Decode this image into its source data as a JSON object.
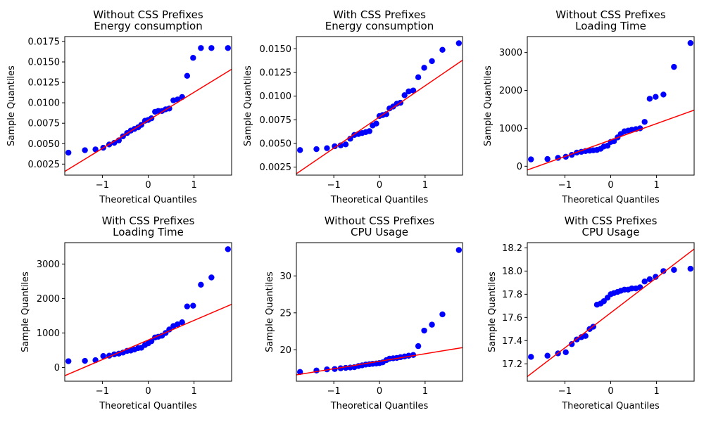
{
  "chart_data": [
    {
      "type": "scatter",
      "title": [
        "Without CSS Prefixes",
        "Energy consumption"
      ],
      "xlabel": "Theoretical Quantiles",
      "ylabel": "Sample Quantiles",
      "xlim": [
        -1.82,
        1.82
      ],
      "ylim": [
        0.00115,
        0.0181
      ],
      "xticks": [
        {
          "v": -1,
          "label": "−1"
        },
        {
          "v": 0,
          "label": "0"
        },
        {
          "v": 1,
          "label": "1"
        }
      ],
      "yticks": [
        {
          "v": 0.0025,
          "label": "0.0025"
        },
        {
          "v": 0.005,
          "label": "0.0050"
        },
        {
          "v": 0.0075,
          "label": "0.0075"
        },
        {
          "v": 0.01,
          "label": "0.0100"
        },
        {
          "v": 0.0125,
          "label": "0.0125"
        },
        {
          "v": 0.015,
          "label": "0.0150"
        },
        {
          "v": 0.0175,
          "label": "0.0175"
        }
      ],
      "x": [
        -1.74,
        -1.38,
        -1.15,
        -0.98,
        -0.85,
        -0.74,
        -0.64,
        -0.55,
        -0.46,
        -0.38,
        -0.3,
        -0.22,
        -0.15,
        -0.07,
        0.0,
        0.07,
        0.15,
        0.22,
        0.3,
        0.38,
        0.46,
        0.55,
        0.64,
        0.74,
        0.85,
        0.98,
        1.15,
        1.38,
        1.74
      ],
      "y": [
        0.0039,
        0.0042,
        0.0043,
        0.0045,
        0.0049,
        0.0051,
        0.0054,
        0.0059,
        0.0063,
        0.0066,
        0.0068,
        0.007,
        0.0073,
        0.0078,
        0.0079,
        0.0081,
        0.0089,
        0.009,
        0.009,
        0.0092,
        0.0093,
        0.0103,
        0.0104,
        0.0107,
        0.0133,
        0.0155,
        0.0167,
        0.0167,
        0.0167
      ],
      "line": [
        [
          -1.82,
          0.0016
        ],
        [
          1.82,
          0.0141
        ]
      ],
      "marker_color": "#0000ff",
      "line_color": "#ff0000"
    },
    {
      "type": "scatter",
      "title": [
        "With CSS Prefixes",
        "Energy consumption"
      ],
      "xlabel": "Theoretical Quantiles",
      "ylabel": "Sample Quantiles",
      "xlim": [
        -1.82,
        1.82
      ],
      "ylim": [
        0.00165,
        0.0163
      ],
      "xticks": [
        {
          "v": -1,
          "label": "−1"
        },
        {
          "v": 0,
          "label": "0"
        },
        {
          "v": 1,
          "label": "1"
        }
      ],
      "yticks": [
        {
          "v": 0.0025,
          "label": "0.0025"
        },
        {
          "v": 0.005,
          "label": "0.0050"
        },
        {
          "v": 0.0075,
          "label": "0.0075"
        },
        {
          "v": 0.01,
          "label": "0.0100"
        },
        {
          "v": 0.0125,
          "label": "0.0125"
        },
        {
          "v": 0.015,
          "label": "0.0150"
        }
      ],
      "x": [
        -1.74,
        -1.38,
        -1.15,
        -0.98,
        -0.85,
        -0.74,
        -0.64,
        -0.55,
        -0.46,
        -0.38,
        -0.3,
        -0.22,
        -0.15,
        -0.07,
        0.0,
        0.07,
        0.15,
        0.22,
        0.3,
        0.38,
        0.46,
        0.55,
        0.64,
        0.74,
        0.85,
        0.98,
        1.15,
        1.38,
        1.74
      ],
      "y": [
        0.0043,
        0.0044,
        0.0045,
        0.0047,
        0.0048,
        0.0049,
        0.0055,
        0.0059,
        0.006,
        0.0061,
        0.0062,
        0.0063,
        0.0069,
        0.0071,
        0.0079,
        0.008,
        0.0081,
        0.0087,
        0.0089,
        0.0092,
        0.0093,
        0.0101,
        0.0105,
        0.0106,
        0.012,
        0.013,
        0.0137,
        0.0149,
        0.0156
      ],
      "line": [
        [
          -1.82,
          0.0018
        ],
        [
          1.82,
          0.0138
        ]
      ],
      "marker_color": "#0000ff",
      "line_color": "#ff0000"
    },
    {
      "type": "scatter",
      "title": [
        "Without CSS Prefixes",
        "Loading Time"
      ],
      "xlabel": "Theoretical Quantiles",
      "ylabel": "Sample Quantiles",
      "xlim": [
        -1.82,
        1.82
      ],
      "ylim": [
        -235,
        3420
      ],
      "xticks": [
        {
          "v": -1,
          "label": "−1"
        },
        {
          "v": 0,
          "label": "0"
        },
        {
          "v": 1,
          "label": "1"
        }
      ],
      "yticks": [
        {
          "v": 0,
          "label": "0"
        },
        {
          "v": 1000,
          "label": "1000"
        },
        {
          "v": 2000,
          "label": "2000"
        },
        {
          "v": 3000,
          "label": "3000"
        }
      ],
      "x": [
        -1.74,
        -1.38,
        -1.15,
        -0.98,
        -0.85,
        -0.74,
        -0.64,
        -0.55,
        -0.46,
        -0.38,
        -0.3,
        -0.22,
        -0.15,
        -0.07,
        0.0,
        0.07,
        0.15,
        0.22,
        0.3,
        0.38,
        0.46,
        0.55,
        0.64,
        0.74,
        0.85,
        0.98,
        1.15,
        1.38,
        1.74
      ],
      "y": [
        180,
        190,
        220,
        250,
        300,
        360,
        380,
        400,
        410,
        420,
        430,
        460,
        520,
        540,
        640,
        660,
        760,
        850,
        920,
        940,
        960,
        980,
        1000,
        1170,
        1780,
        1830,
        1890,
        2620,
        3250
      ],
      "line": [
        [
          -1.82,
          -100
        ],
        [
          1.82,
          1480
        ]
      ],
      "marker_color": "#0000ff",
      "line_color": "#ff0000"
    },
    {
      "type": "scatter",
      "title": [
        "With CSS Prefixes",
        "Loading Time"
      ],
      "xlabel": "Theoretical Quantiles",
      "ylabel": "Sample Quantiles",
      "xlim": [
        -1.82,
        1.82
      ],
      "ylim": [
        -400,
        3620
      ],
      "xticks": [
        {
          "v": -1,
          "label": "−1"
        },
        {
          "v": 0,
          "label": "0"
        },
        {
          "v": 1,
          "label": "1"
        }
      ],
      "yticks": [
        {
          "v": 0,
          "label": "0"
        },
        {
          "v": 1000,
          "label": "1000"
        },
        {
          "v": 2000,
          "label": "2000"
        },
        {
          "v": 3000,
          "label": "3000"
        }
      ],
      "x": [
        -1.74,
        -1.38,
        -1.15,
        -0.98,
        -0.85,
        -0.74,
        -0.64,
        -0.55,
        -0.46,
        -0.38,
        -0.3,
        -0.22,
        -0.15,
        -0.07,
        0.0,
        0.07,
        0.15,
        0.22,
        0.3,
        0.38,
        0.46,
        0.55,
        0.64,
        0.74,
        0.85,
        0.98,
        1.15,
        1.38,
        1.74
      ],
      "y": [
        180,
        190,
        210,
        330,
        340,
        380,
        400,
        430,
        480,
        490,
        520,
        560,
        570,
        650,
        700,
        760,
        870,
        890,
        920,
        1000,
        1100,
        1200,
        1250,
        1310,
        1770,
        1790,
        2400,
        2610,
        3430
      ],
      "line": [
        [
          -1.82,
          -240
        ],
        [
          1.82,
          1830
        ]
      ],
      "marker_color": "#0000ff",
      "line_color": "#ff0000"
    },
    {
      "type": "scatter",
      "title": [
        "Without CSS Prefixes",
        "CPU Usage"
      ],
      "xlabel": "Theoretical Quantiles",
      "ylabel": "Sample Quantiles",
      "xlim": [
        -1.82,
        1.82
      ],
      "ylim": [
        15.75,
        34.5
      ],
      "xticks": [
        {
          "v": -1,
          "label": "−1"
        },
        {
          "v": 0,
          "label": "0"
        },
        {
          "v": 1,
          "label": "1"
        }
      ],
      "yticks": [
        {
          "v": 20,
          "label": "20"
        },
        {
          "v": 25,
          "label": "25"
        },
        {
          "v": 30,
          "label": "30"
        }
      ],
      "x": [
        -1.74,
        -1.38,
        -1.15,
        -0.98,
        -0.85,
        -0.74,
        -0.64,
        -0.55,
        -0.46,
        -0.38,
        -0.3,
        -0.22,
        -0.15,
        -0.07,
        0.0,
        0.07,
        0.15,
        0.22,
        0.3,
        0.38,
        0.46,
        0.55,
        0.64,
        0.74,
        0.85,
        0.98,
        1.15,
        1.38,
        1.74
      ],
      "y": [
        17.0,
        17.2,
        17.35,
        17.4,
        17.5,
        17.55,
        17.6,
        17.65,
        17.8,
        17.9,
        18.0,
        18.05,
        18.1,
        18.15,
        18.2,
        18.3,
        18.6,
        18.8,
        18.85,
        18.9,
        19.0,
        19.1,
        19.2,
        19.3,
        20.5,
        22.6,
        23.4,
        24.8,
        33.5
      ],
      "line": [
        [
          -1.82,
          16.6
        ],
        [
          1.82,
          20.3
        ]
      ],
      "marker_color": "#0000ff",
      "line_color": "#ff0000"
    },
    {
      "type": "scatter",
      "title": [
        "With CSS Prefixes",
        "CPU Usage"
      ],
      "xlabel": "Theoretical Quantiles",
      "ylabel": "Sample Quantiles",
      "xlim": [
        -1.82,
        1.82
      ],
      "ylim": [
        17.05,
        18.245
      ],
      "xticks": [
        {
          "v": -1,
          "label": "−1"
        },
        {
          "v": 0,
          "label": "0"
        },
        {
          "v": 1,
          "label": "1"
        }
      ],
      "yticks": [
        {
          "v": 17.2,
          "label": "17.2"
        },
        {
          "v": 17.4,
          "label": "17.4"
        },
        {
          "v": 17.6,
          "label": "17.6"
        },
        {
          "v": 17.8,
          "label": "17.8"
        },
        {
          "v": 18.0,
          "label": "18.0"
        },
        {
          "v": 18.2,
          "label": "18.2"
        }
      ],
      "x": [
        -1.74,
        -1.38,
        -1.15,
        -0.98,
        -0.85,
        -0.74,
        -0.64,
        -0.55,
        -0.46,
        -0.38,
        -0.3,
        -0.22,
        -0.15,
        -0.07,
        0.0,
        0.07,
        0.15,
        0.22,
        0.3,
        0.38,
        0.46,
        0.55,
        0.64,
        0.74,
        0.85,
        0.98,
        1.15,
        1.38,
        1.74
      ],
      "y": [
        17.26,
        17.27,
        17.29,
        17.3,
        17.37,
        17.41,
        17.43,
        17.44,
        17.5,
        17.52,
        17.71,
        17.72,
        17.74,
        17.77,
        17.8,
        17.81,
        17.82,
        17.83,
        17.84,
        17.84,
        17.85,
        17.85,
        17.86,
        17.91,
        17.93,
        17.95,
        18.0,
        18.01,
        18.02
      ],
      "line": [
        [
          -1.82,
          17.09
        ],
        [
          1.82,
          18.19
        ]
      ],
      "marker_color": "#0000ff",
      "line_color": "#ff0000"
    }
  ]
}
